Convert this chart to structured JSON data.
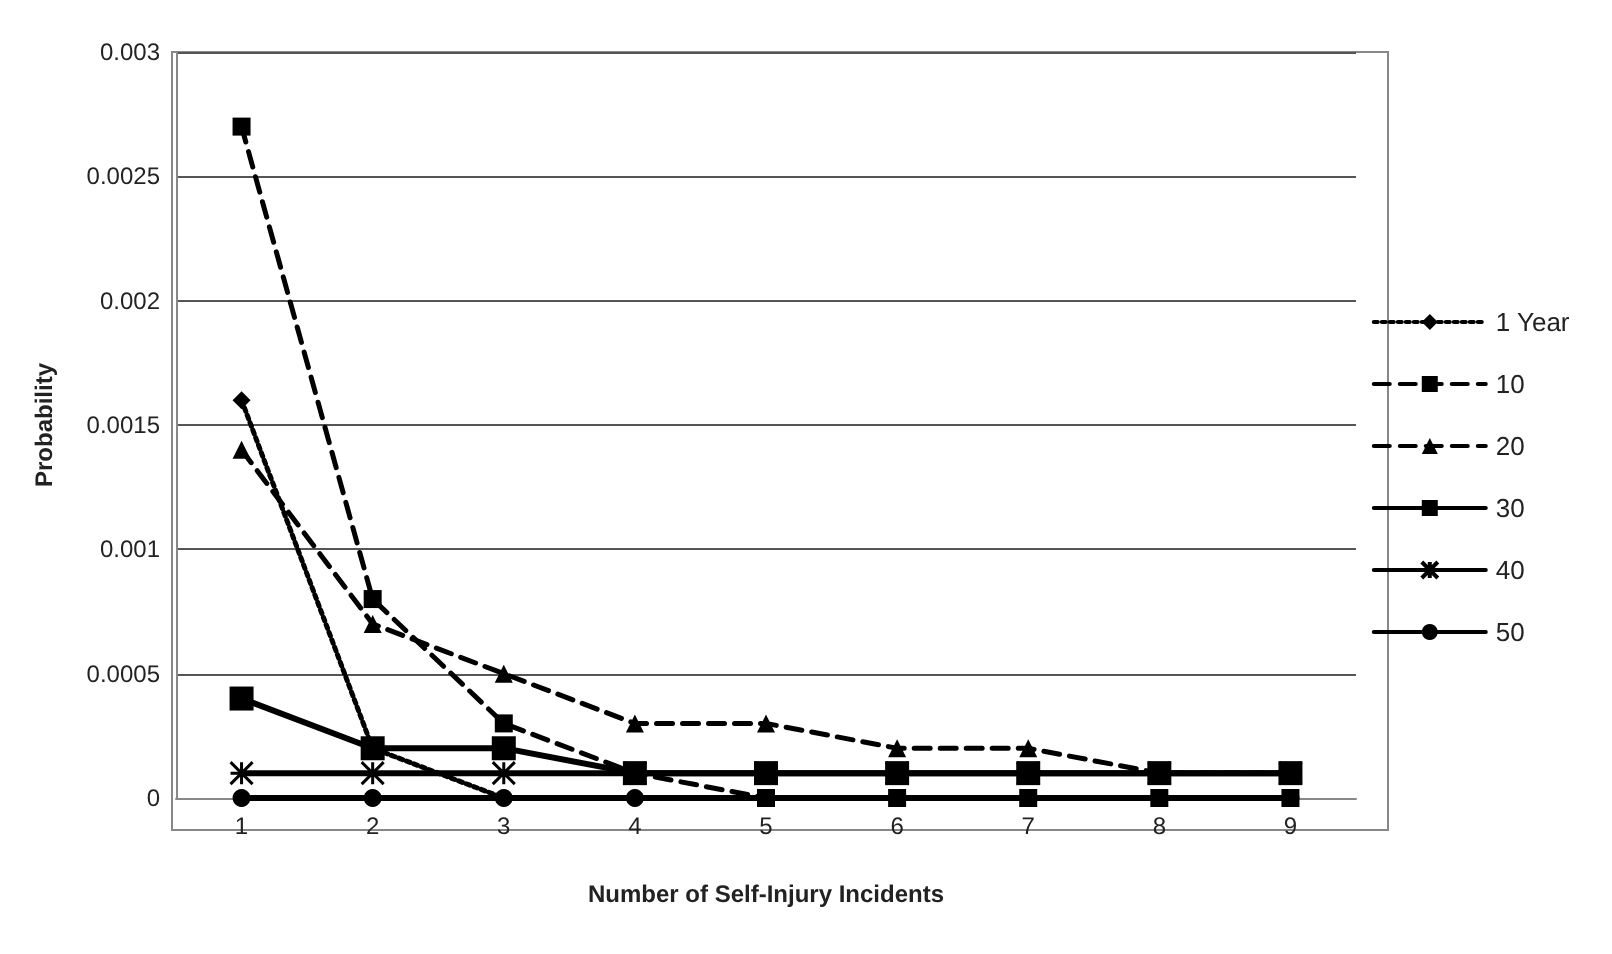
{
  "chart_data": {
    "type": "line",
    "xlabel": "Number of Self-Injury Incidents",
    "ylabel": "Probability",
    "categories": [
      "1",
      "2",
      "3",
      "4",
      "5",
      "6",
      "7",
      "8",
      "9"
    ],
    "series": [
      {
        "name": "1 Year",
        "color": "#000000",
        "marker": "diamond",
        "line_style": "dotted",
        "values": [
          0.0016,
          0.0002,
          0,
          0,
          0,
          0,
          0,
          0,
          0
        ]
      },
      {
        "name": "10",
        "color": "#000000",
        "marker": "square",
        "line_style": "dashed",
        "values": [
          0.0027,
          0.0008,
          0.0003,
          0.0001,
          0,
          0,
          0,
          0,
          0
        ]
      },
      {
        "name": "20",
        "color": "#000000",
        "marker": "triangle",
        "line_style": "dashed",
        "values": [
          0.0014,
          0.0007,
          0.0005,
          0.0003,
          0.0003,
          0.0002,
          0.0002,
          0.0001,
          0.0001
        ]
      },
      {
        "name": "30",
        "color": "#000000",
        "marker": "square",
        "line_style": "solid",
        "values": [
          0.0004,
          0.0002,
          0.0002,
          0.0001,
          0.0001,
          0.0001,
          0.0001,
          0.0001,
          0.0001
        ]
      },
      {
        "name": "40",
        "color": "#000000",
        "marker": "cross",
        "line_style": "solid",
        "values": [
          0.0001,
          0.0001,
          0.0001,
          0.0001,
          0.0001,
          0.0001,
          0.0001,
          0.0001,
          0.0001
        ]
      },
      {
        "name": "50",
        "color": "#000000",
        "marker": "circle",
        "line_style": "solid",
        "values": [
          0,
          0,
          0,
          0,
          0,
          0,
          0,
          0,
          0
        ]
      }
    ],
    "ylim": [
      0,
      0.003
    ],
    "yticks": [
      0,
      0.0005,
      0.001,
      0.0015,
      0.002,
      0.0025,
      0.003
    ],
    "grid": "y",
    "legend": "right"
  }
}
